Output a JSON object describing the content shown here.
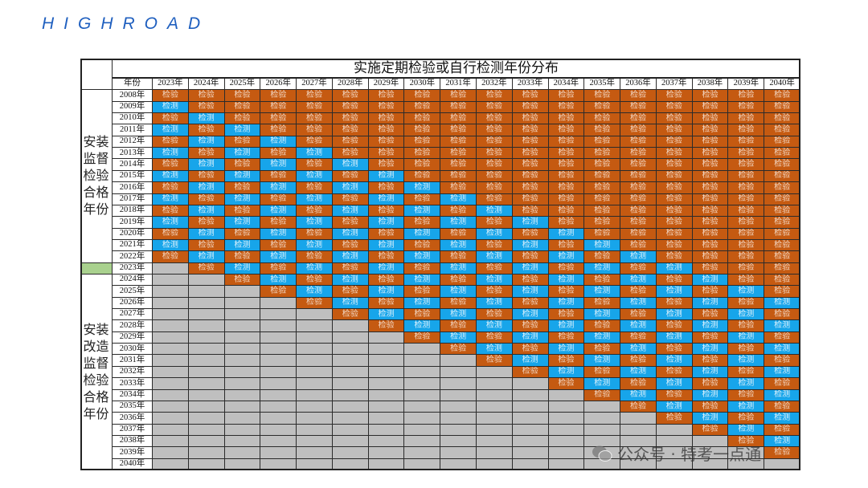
{
  "header": {
    "brand": "HIGHROAD"
  },
  "table": {
    "title": "实施定期检验或自行检测年份分布",
    "corner": "年份",
    "groups": [
      {
        "label": "安装监督检验合格年份"
      },
      {
        "label": "安装改造监督检验合格年份"
      }
    ],
    "columns": [
      "2023年",
      "2024年",
      "2025年",
      "2026年",
      "2027年",
      "2028年",
      "2029年",
      "2030年",
      "2031年",
      "2032年",
      "2033年",
      "2034年",
      "2035年",
      "2036年",
      "2037年",
      "2038年",
      "2039年",
      "2040年"
    ],
    "rows": [
      {
        "label": "2008年",
        "cells": [
          "检验",
          "检验",
          "检验",
          "检验",
          "检验",
          "检验",
          "检验",
          "检验",
          "检验",
          "检验",
          "检验",
          "检验",
          "检验",
          "检验",
          "检验",
          "检验",
          "检验",
          "检验"
        ]
      },
      {
        "label": "2009年",
        "cells": [
          "检测",
          "检验",
          "检验",
          "检验",
          "检验",
          "检验",
          "检验",
          "检验",
          "检验",
          "检验",
          "检验",
          "检验",
          "检验",
          "检验",
          "检验",
          "检验",
          "检验",
          "检验"
        ]
      },
      {
        "label": "2010年",
        "cells": [
          "检验",
          "检测",
          "检验",
          "检验",
          "检验",
          "检验",
          "检验",
          "检验",
          "检验",
          "检验",
          "检验",
          "检验",
          "检验",
          "检验",
          "检验",
          "检验",
          "检验",
          "检验"
        ]
      },
      {
        "label": "2011年",
        "cells": [
          "检测",
          "检验",
          "检测",
          "检验",
          "检验",
          "检验",
          "检验",
          "检验",
          "检验",
          "检验",
          "检验",
          "检验",
          "检验",
          "检验",
          "检验",
          "检验",
          "检验",
          "检验"
        ]
      },
      {
        "label": "2012年",
        "cells": [
          "检验",
          "检测",
          "检验",
          "检测",
          "检验",
          "检验",
          "检验",
          "检验",
          "检验",
          "检验",
          "检验",
          "检验",
          "检验",
          "检验",
          "检验",
          "检验",
          "检验",
          "检验"
        ]
      },
      {
        "label": "2013年",
        "cells": [
          "检测",
          "检验",
          "检测",
          "检验",
          "检测",
          "检验",
          "检验",
          "检验",
          "检验",
          "检验",
          "检验",
          "检验",
          "检验",
          "检验",
          "检验",
          "检验",
          "检验",
          "检验"
        ]
      },
      {
        "label": "2014年",
        "cells": [
          "检验",
          "检测",
          "检验",
          "检测",
          "检验",
          "检测",
          "检验",
          "检验",
          "检验",
          "检验",
          "检验",
          "检验",
          "检验",
          "检验",
          "检验",
          "检验",
          "检验",
          "检验"
        ]
      },
      {
        "label": "2015年",
        "cells": [
          "检测",
          "检验",
          "检测",
          "检验",
          "检测",
          "检验",
          "检测",
          "检验",
          "检验",
          "检验",
          "检验",
          "检验",
          "检验",
          "检验",
          "检验",
          "检验",
          "检验",
          "检验"
        ]
      },
      {
        "label": "2016年",
        "cells": [
          "检验",
          "检测",
          "检验",
          "检测",
          "检验",
          "检测",
          "检验",
          "检测",
          "检验",
          "检验",
          "检验",
          "检验",
          "检验",
          "检验",
          "检验",
          "检验",
          "检验",
          "检验"
        ]
      },
      {
        "label": "2017年",
        "cells": [
          "检测",
          "检验",
          "检测",
          "检验",
          "检测",
          "检验",
          "检测",
          "检验",
          "检测",
          "检验",
          "检验",
          "检验",
          "检验",
          "检验",
          "检验",
          "检验",
          "检验",
          "检验"
        ]
      },
      {
        "label": "2018年",
        "cells": [
          "检验",
          "检测",
          "检验",
          "检测",
          "检验",
          "检测",
          "检验",
          "检测",
          "检验",
          "检测",
          "检验",
          "检验",
          "检验",
          "检验",
          "检验",
          "检验",
          "检验",
          "检验"
        ]
      },
      {
        "label": "2019年",
        "cells": [
          "检测",
          "检验",
          "检测",
          "检验",
          "检测",
          "检验",
          "检测",
          "检验",
          "检测",
          "检验",
          "检测",
          "检验",
          "检验",
          "检验",
          "检验",
          "检验",
          "检验",
          "检验"
        ]
      },
      {
        "label": "2020年",
        "cells": [
          "检验",
          "检测",
          "检验",
          "检测",
          "检验",
          "检测",
          "检验",
          "检测",
          "检验",
          "检测",
          "检验",
          "检测",
          "检验",
          "检验",
          "检验",
          "检验",
          "检验",
          "检验"
        ]
      },
      {
        "label": "2021年",
        "cells": [
          "检测",
          "检验",
          "检测",
          "检验",
          "检测",
          "检验",
          "检测",
          "检验",
          "检测",
          "检验",
          "检测",
          "检验",
          "检测",
          "检验",
          "检验",
          "检验",
          "检验",
          "检验"
        ]
      },
      {
        "label": "2022年",
        "cells": [
          "检验",
          "检测",
          "检验",
          "检测",
          "检验",
          "检测",
          "检验",
          "检测",
          "检验",
          "检测",
          "检验",
          "检测",
          "检验",
          "检测",
          "检验",
          "检验",
          "检验",
          "检验"
        ]
      },
      {
        "label": "2023年",
        "cells": [
          null,
          "检验",
          "检测",
          "检验",
          "检测",
          "检验",
          "检测",
          "检验",
          "检测",
          "检验",
          "检测",
          "检验",
          "检测",
          "检验",
          "检测",
          "检验",
          "检验",
          "检验"
        ]
      },
      {
        "label": "2024年",
        "cells": [
          null,
          null,
          "检验",
          "检测",
          "检验",
          "检测",
          "检验",
          "检测",
          "检验",
          "检测",
          "检验",
          "检测",
          "检验",
          "检测",
          "检验",
          "检测",
          "检验",
          "检验"
        ]
      },
      {
        "label": "2025年",
        "cells": [
          null,
          null,
          null,
          "检验",
          "检测",
          "检验",
          "检测",
          "检验",
          "检测",
          "检验",
          "检测",
          "检验",
          "检测",
          "检验",
          "检测",
          "检验",
          "检测",
          "检验"
        ]
      },
      {
        "label": "2026年",
        "cells": [
          null,
          null,
          null,
          null,
          "检验",
          "检测",
          "检验",
          "检测",
          "检验",
          "检测",
          "检验",
          "检测",
          "检验",
          "检测",
          "检验",
          "检测",
          "检验",
          "检测"
        ]
      },
      {
        "label": "2027年",
        "cells": [
          null,
          null,
          null,
          null,
          null,
          "检验",
          "检测",
          "检验",
          "检测",
          "检验",
          "检测",
          "检验",
          "检测",
          "检验",
          "检测",
          "检验",
          "检测",
          "检验"
        ]
      },
      {
        "label": "2028年",
        "cells": [
          null,
          null,
          null,
          null,
          null,
          null,
          "检验",
          "检测",
          "检验",
          "检测",
          "检验",
          "检测",
          "检验",
          "检测",
          "检验",
          "检测",
          "检验",
          "检测"
        ]
      },
      {
        "label": "2029年",
        "cells": [
          null,
          null,
          null,
          null,
          null,
          null,
          null,
          "检验",
          "检测",
          "检验",
          "检测",
          "检验",
          "检测",
          "检验",
          "检测",
          "检验",
          "检测",
          "检验"
        ]
      },
      {
        "label": "2030年",
        "cells": [
          null,
          null,
          null,
          null,
          null,
          null,
          null,
          null,
          "检验",
          "检测",
          "检验",
          "检测",
          "检验",
          "检测",
          "检验",
          "检测",
          "检验",
          "检测"
        ]
      },
      {
        "label": "2031年",
        "cells": [
          null,
          null,
          null,
          null,
          null,
          null,
          null,
          null,
          null,
          "检验",
          "检测",
          "检验",
          "检测",
          "检验",
          "检测",
          "检验",
          "检测",
          "检验"
        ]
      },
      {
        "label": "2032年",
        "cells": [
          null,
          null,
          null,
          null,
          null,
          null,
          null,
          null,
          null,
          null,
          "检验",
          "检测",
          "检验",
          "检测",
          "检验",
          "检测",
          "检验",
          "检测"
        ]
      },
      {
        "label": "2033年",
        "cells": [
          null,
          null,
          null,
          null,
          null,
          null,
          null,
          null,
          null,
          null,
          null,
          "检验",
          "检测",
          "检验",
          "检测",
          "检验",
          "检测",
          "检验"
        ]
      },
      {
        "label": "2034年",
        "cells": [
          null,
          null,
          null,
          null,
          null,
          null,
          null,
          null,
          null,
          null,
          null,
          null,
          "检验",
          "检测",
          "检验",
          "检测",
          "检验",
          "检测"
        ]
      },
      {
        "label": "2035年",
        "cells": [
          null,
          null,
          null,
          null,
          null,
          null,
          null,
          null,
          null,
          null,
          null,
          null,
          null,
          "检验",
          "检测",
          "检验",
          "检测",
          "检验"
        ]
      },
      {
        "label": "2036年",
        "cells": [
          null,
          null,
          null,
          null,
          null,
          null,
          null,
          null,
          null,
          null,
          null,
          null,
          null,
          null,
          "检验",
          "检测",
          "检验",
          "检测"
        ]
      },
      {
        "label": "2037年",
        "cells": [
          null,
          null,
          null,
          null,
          null,
          null,
          null,
          null,
          null,
          null,
          null,
          null,
          null,
          null,
          null,
          "检验",
          "检测",
          "检验"
        ]
      },
      {
        "label": "2038年",
        "cells": [
          null,
          null,
          null,
          null,
          null,
          null,
          null,
          null,
          null,
          null,
          null,
          null,
          null,
          null,
          null,
          null,
          "检验",
          "检测"
        ]
      },
      {
        "label": "2039年",
        "cells": [
          null,
          null,
          null,
          null,
          null,
          null,
          null,
          null,
          null,
          null,
          null,
          null,
          null,
          null,
          null,
          null,
          null,
          "检验"
        ]
      },
      {
        "label": "2040年",
        "cells": [
          null,
          null,
          null,
          null,
          null,
          null,
          null,
          null,
          null,
          null,
          null,
          null,
          null,
          null,
          null,
          null,
          null,
          null
        ]
      }
    ]
  },
  "watermark": "公众号 · 特考一点通"
}
